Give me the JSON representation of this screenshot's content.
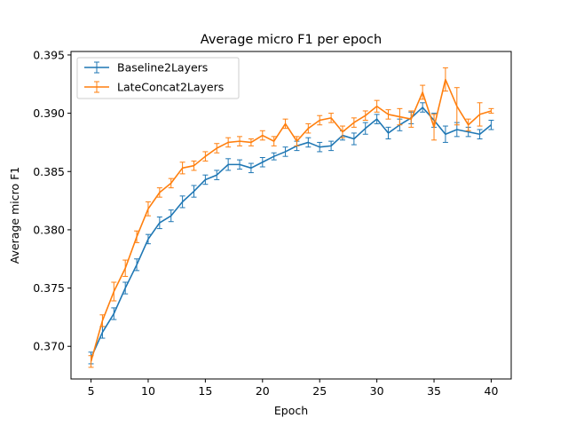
{
  "chart_data": {
    "type": "line",
    "title": "Average micro F1 per epoch",
    "xlabel": "Epoch",
    "ylabel": "Average micro F1",
    "xlim": [
      3.25,
      41.75
    ],
    "ylim": [
      0.3672,
      0.3953
    ],
    "xticks": [
      5,
      10,
      15,
      20,
      25,
      30,
      35,
      40
    ],
    "xtick_labels": [
      "5",
      "10",
      "15",
      "20",
      "25",
      "30",
      "35",
      "40"
    ],
    "yticks": [
      0.37,
      0.375,
      0.38,
      0.385,
      0.39,
      0.395
    ],
    "ytick_labels": [
      "0.370",
      "0.375",
      "0.380",
      "0.385",
      "0.390",
      "0.395"
    ],
    "grid": false,
    "legend": "top-left",
    "x": [
      5,
      6,
      7,
      8,
      9,
      10,
      11,
      12,
      13,
      14,
      15,
      16,
      17,
      18,
      19,
      20,
      21,
      22,
      23,
      24,
      25,
      26,
      27,
      28,
      29,
      30,
      31,
      32,
      33,
      34,
      35,
      36,
      37,
      38,
      39,
      40
    ],
    "series": [
      {
        "name": "Baseline2Layers",
        "color": "#1f77b4",
        "values": [
          0.369,
          0.3712,
          0.3728,
          0.375,
          0.377,
          0.3792,
          0.3806,
          0.3812,
          0.3824,
          0.3833,
          0.3843,
          0.3847,
          0.3856,
          0.3856,
          0.3853,
          0.3858,
          0.3863,
          0.3867,
          0.3872,
          0.3875,
          0.3871,
          0.3872,
          0.3881,
          0.3878,
          0.3887,
          0.3895,
          0.3883,
          0.389,
          0.3896,
          0.3905,
          0.3894,
          0.3882,
          0.3886,
          0.3884,
          0.3882,
          0.389
        ],
        "errors": [
          0.0005,
          0.0005,
          0.0005,
          0.0005,
          0.0005,
          0.0004,
          0.0005,
          0.0005,
          0.0005,
          0.0005,
          0.0004,
          0.0004,
          0.0005,
          0.0004,
          0.0004,
          0.0004,
          0.0003,
          0.0004,
          0.0004,
          0.0004,
          0.0004,
          0.0004,
          0.0004,
          0.0005,
          0.0005,
          0.0004,
          0.0005,
          0.0005,
          0.0005,
          0.0004,
          0.0006,
          0.0007,
          0.0006,
          0.0004,
          0.0004,
          0.0004
        ]
      },
      {
        "name": "LateConcat2Layers",
        "color": "#ff7f0e",
        "values": [
          0.3687,
          0.3722,
          0.3747,
          0.3767,
          0.3794,
          0.3818,
          0.3832,
          0.384,
          0.3853,
          0.3855,
          0.3863,
          0.387,
          0.3875,
          0.3876,
          0.3875,
          0.3881,
          0.3876,
          0.3891,
          0.3876,
          0.3887,
          0.3894,
          0.3896,
          0.3884,
          0.3892,
          0.3898,
          0.3906,
          0.3899,
          0.3897,
          0.3895,
          0.3918,
          0.3888,
          0.3929,
          0.3906,
          0.389,
          0.3899,
          0.3902
        ],
        "errors": [
          0.0005,
          0.0005,
          0.0008,
          0.0007,
          0.0005,
          0.0006,
          0.0004,
          0.0004,
          0.0005,
          0.0004,
          0.0004,
          0.0004,
          0.0004,
          0.0004,
          0.0003,
          0.0004,
          0.0004,
          0.0004,
          0.0004,
          0.0004,
          0.0004,
          0.0004,
          0.0005,
          0.0004,
          0.0004,
          0.0005,
          0.0004,
          0.0007,
          0.0007,
          0.0006,
          0.0011,
          0.001,
          0.0016,
          0.0005,
          0.001,
          0.0002
        ]
      }
    ]
  }
}
